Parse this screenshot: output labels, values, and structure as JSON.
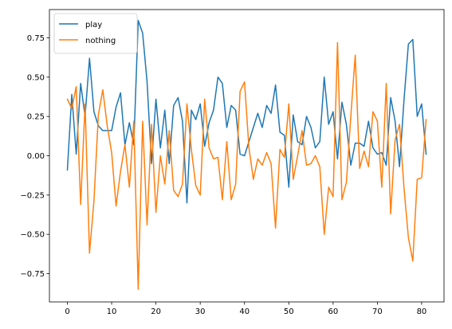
{
  "chart_data": {
    "type": "line",
    "title": "",
    "xlabel": "",
    "ylabel": "",
    "xlim": [
      -4.05,
      85.05
    ],
    "ylim": [
      -0.93,
      0.93
    ],
    "xticks": [
      0,
      10,
      20,
      30,
      40,
      50,
      60,
      70,
      80
    ],
    "yticks": [
      -0.75,
      -0.5,
      -0.25,
      0.0,
      0.25,
      0.5,
      0.75
    ],
    "ytick_labels": [
      "−0.75",
      "−0.50",
      "−0.25",
      "0.00",
      "0.25",
      "0.50",
      "0.75"
    ],
    "grid": false,
    "legend": "upper-left",
    "x": [
      0,
      1,
      2,
      3,
      4,
      5,
      6,
      7,
      8,
      9,
      10,
      11,
      12,
      13,
      14,
      15,
      16,
      17,
      18,
      19,
      20,
      21,
      22,
      23,
      24,
      25,
      26,
      27,
      28,
      29,
      30,
      31,
      32,
      33,
      34,
      35,
      36,
      37,
      38,
      39,
      40,
      41,
      42,
      43,
      44,
      45,
      46,
      47,
      48,
      49,
      50,
      51,
      52,
      53,
      54,
      55,
      56,
      57,
      58,
      59,
      60,
      61,
      62,
      63,
      64,
      65,
      66,
      67,
      68,
      69,
      70,
      71,
      72,
      73,
      74,
      75,
      76,
      77,
      78,
      79,
      80,
      81
    ],
    "series": [
      {
        "name": "play",
        "color": "#1f77b4",
        "values": [
          -0.09,
          0.39,
          0.01,
          0.46,
          0.25,
          0.62,
          0.28,
          0.19,
          0.16,
          0.16,
          0.16,
          0.31,
          0.4,
          0.07,
          0.21,
          0.07,
          0.86,
          0.78,
          0.47,
          -0.05,
          0.36,
          0.05,
          0.29,
          -0.05,
          0.32,
          0.37,
          0.22,
          -0.3,
          0.29,
          0.23,
          0.33,
          0.06,
          0.21,
          0.29,
          0.5,
          0.46,
          0.18,
          0.32,
          0.29,
          0.01,
          0.0,
          0.09,
          0.18,
          0.27,
          0.18,
          0.32,
          0.27,
          0.45,
          0.15,
          0.13,
          -0.2,
          0.26,
          0.09,
          0.07,
          0.25,
          0.18,
          0.05,
          0.09,
          0.5,
          0.2,
          0.28,
          -0.02,
          0.34,
          0.2,
          -0.06,
          0.08,
          0.08,
          0.06,
          0.22,
          0.05,
          0.01,
          0.02,
          -0.06,
          0.37,
          0.22,
          -0.07,
          0.35,
          0.71,
          0.74,
          0.25,
          0.33,
          0.01
        ]
      },
      {
        "name": "nothing",
        "color": "#ff7f0e",
        "values": [
          0.36,
          0.3,
          0.44,
          -0.31,
          0.33,
          -0.62,
          -0.29,
          0.26,
          0.42,
          0.19,
          0.02,
          -0.32,
          -0.1,
          0.07,
          -0.2,
          0.22,
          -0.85,
          0.22,
          -0.44,
          0.2,
          -0.36,
          0.0,
          -0.18,
          0.16,
          -0.22,
          -0.26,
          -0.18,
          0.33,
          0.04,
          -0.19,
          -0.25,
          0.36,
          0.05,
          -0.02,
          -0.01,
          -0.28,
          0.09,
          -0.28,
          -0.18,
          0.41,
          0.47,
          0.05,
          -0.15,
          -0.02,
          -0.06,
          0.02,
          -0.05,
          -0.46,
          0.04,
          -0.01,
          0.33,
          -0.15,
          0.0,
          0.16,
          -0.06,
          -0.05,
          0.0,
          -0.07,
          -0.5,
          -0.2,
          -0.26,
          0.72,
          -0.28,
          -0.17,
          0.25,
          0.64,
          -0.08,
          0.03,
          -0.07,
          0.28,
          0.22,
          -0.2,
          0.46,
          -0.37,
          0.1,
          0.2,
          -0.2,
          -0.52,
          -0.67,
          -0.15,
          -0.14,
          0.23
        ]
      }
    ]
  }
}
